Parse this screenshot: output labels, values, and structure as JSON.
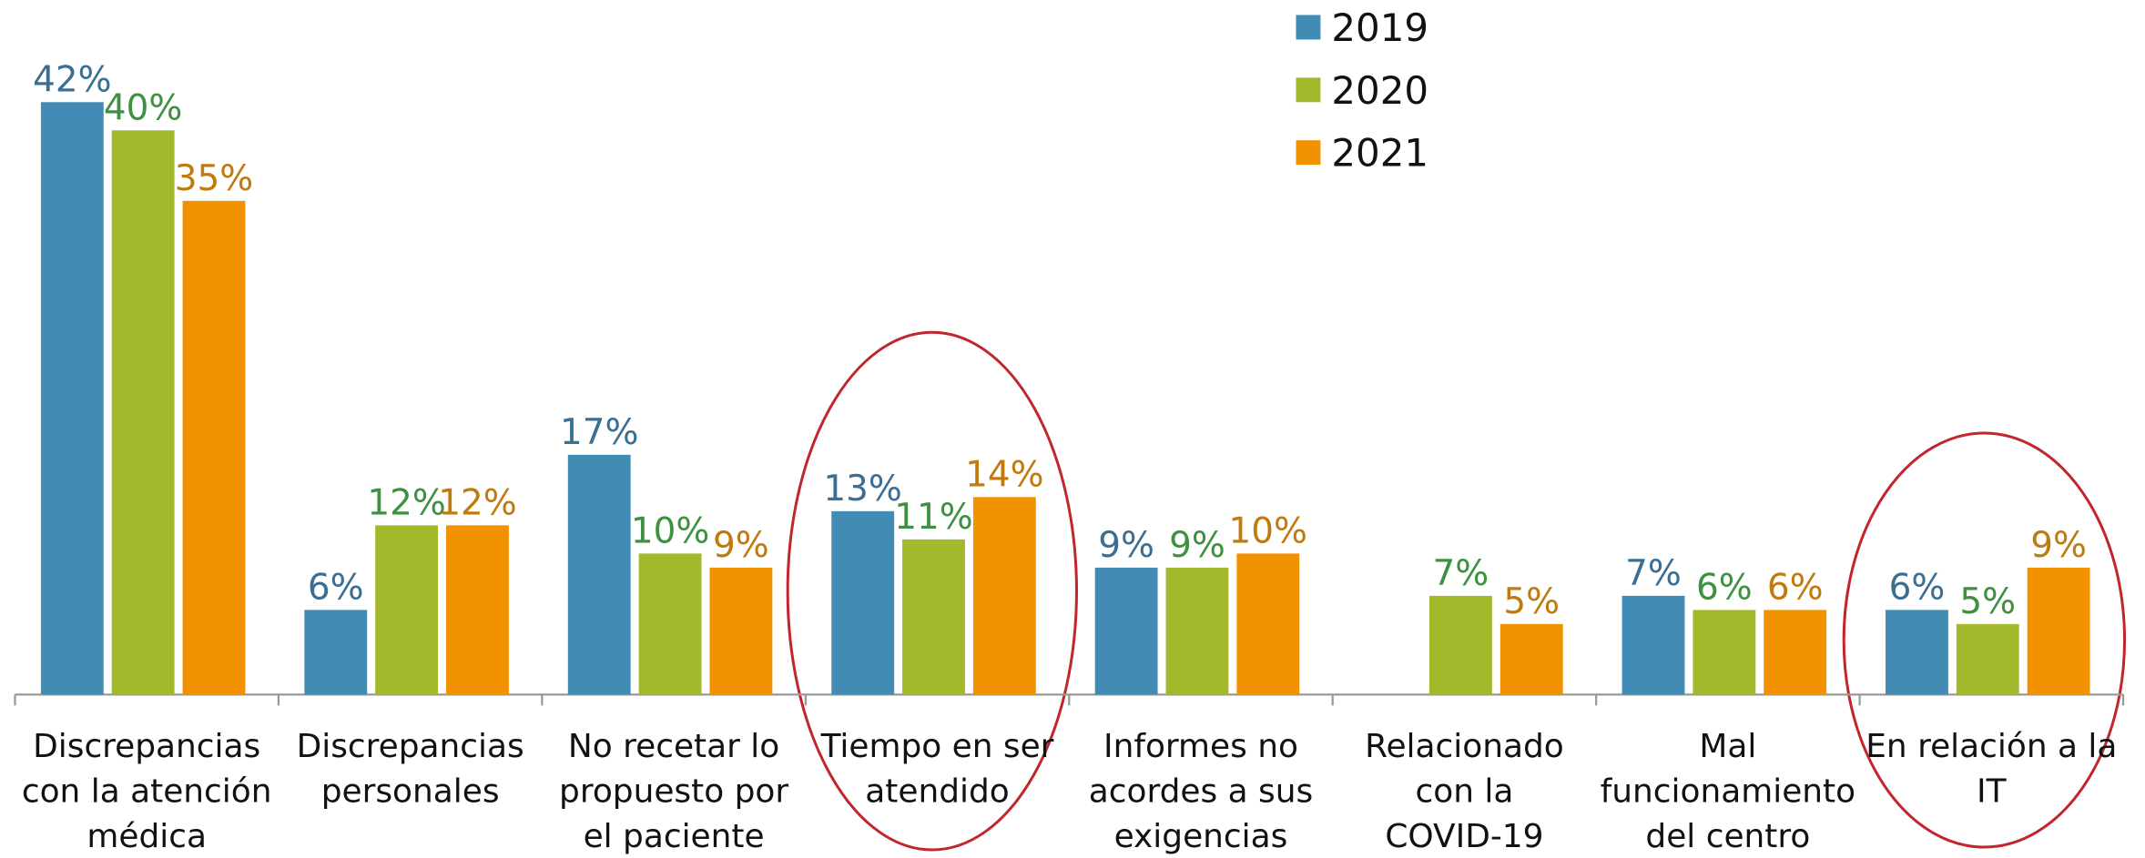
{
  "chart_data": {
    "type": "bar",
    "categories": [
      "Discrepancias con la atención médica",
      "Discrepancias personales",
      "No recetar lo propuesto por el paciente",
      "Tiempo en ser atendido",
      "Informes no acordes a sus exigencias",
      "Relacionado con la COVID-19",
      "Mal funcionamiento del centro",
      "En relación a la IT"
    ],
    "series": [
      {
        "name": "2019",
        "color": "#428bb5",
        "label_color": "#3a6f93",
        "values": [
          42,
          6,
          17,
          13,
          9,
          null,
          7,
          6
        ],
        "value_labels": [
          "42%",
          "6%",
          "17%",
          "13%",
          "9%",
          null,
          "7%",
          "6%"
        ]
      },
      {
        "name": "2020",
        "color": "#a4b82c",
        "label_color": "#3d9140",
        "values": [
          40,
          12,
          10,
          11,
          9,
          7,
          6,
          5
        ],
        "value_labels": [
          "40%",
          "12%",
          "10%",
          "11%",
          "9%",
          "7%",
          "6%",
          "5%"
        ]
      },
      {
        "name": "2021",
        "color": "#f39200",
        "label_color": "#c07a10",
        "values": [
          35,
          12,
          9,
          14,
          10,
          5,
          6,
          9
        ],
        "value_labels": [
          "35%",
          "12%",
          "9%",
          "14%",
          "10%",
          "5%",
          "6%",
          "9%"
        ]
      }
    ],
    "ylim": [
      0,
      42
    ],
    "legend": "top"
  }
}
